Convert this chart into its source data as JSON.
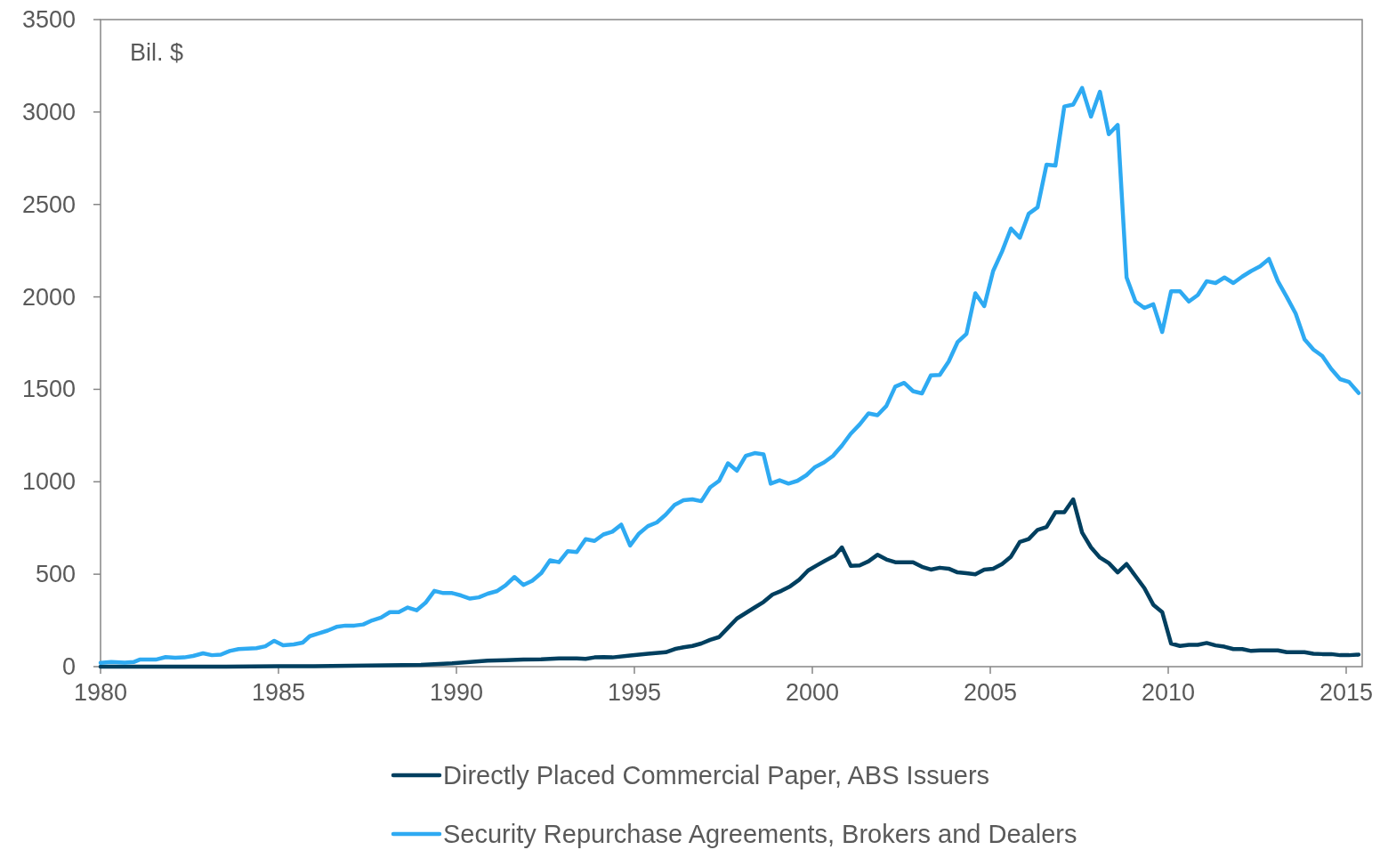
{
  "chart_data": {
    "type": "line",
    "annotations": [
      "Bil. $"
    ],
    "xlim": [
      1980,
      2015.45
    ],
    "xticks": [
      1980,
      1985,
      1990,
      1995,
      2000,
      2005,
      2010,
      2015
    ],
    "ylim": [
      0,
      3500
    ],
    "yticks": [
      0,
      500,
      1000,
      1500,
      2000,
      2500,
      3000,
      3500
    ],
    "grid": false,
    "legend": "bottom",
    "marker": "none",
    "line_style": "solid",
    "series": [
      {
        "name": "Directly Placed Commercial Paper, ABS Issuers",
        "color": "#003f5f",
        "x": [
          1980,
          1983,
          1985,
          1986,
          1987,
          1988,
          1989,
          1989.88,
          1990.38,
          1990.88,
          1991.38,
          1991.88,
          1992.38,
          1992.88,
          1993.38,
          1993.63,
          1993.88,
          1994.13,
          1994.38,
          1994.88,
          1995.38,
          1995.88,
          1996.13,
          1996.38,
          1996.63,
          1996.88,
          1997.13,
          1997.38,
          1997.63,
          1997.88,
          1998.13,
          1998.38,
          1998.63,
          1998.88,
          1999.13,
          1999.38,
          1999.63,
          1999.88,
          2000.13,
          2000.38,
          2000.63,
          2000.83,
          2001.08,
          2001.33,
          2001.58,
          2001.83,
          2002.08,
          2002.33,
          2002.58,
          2002.83,
          2003.08,
          2003.33,
          2003.58,
          2003.83,
          2004.08,
          2004.33,
          2004.58,
          2004.83,
          2005.08,
          2005.33,
          2005.58,
          2005.83,
          2006.08,
          2006.33,
          2006.58,
          2006.83,
          2007.08,
          2007.33,
          2007.58,
          2007.83,
          2008.08,
          2008.33,
          2008.58,
          2008.83,
          2009.08,
          2009.33,
          2009.58,
          2009.83,
          2010.08,
          2010.33,
          2010.58,
          2010.83,
          2011.08,
          2011.33,
          2011.58,
          2011.83,
          2012.08,
          2012.33,
          2012.58,
          2012.83,
          2013.08,
          2013.33,
          2013.58,
          2013.83,
          2014.08,
          2014.33,
          2014.58,
          2014.83,
          2015.08,
          2015.35
        ],
        "values": [
          0,
          0,
          2,
          3,
          5,
          7,
          10,
          18,
          25,
          32,
          35,
          38,
          40,
          45,
          45,
          42,
          50,
          52,
          50,
          60,
          70,
          78,
          95,
          105,
          112,
          125,
          145,
          160,
          210,
          260,
          290,
          320,
          350,
          390,
          410,
          435,
          470,
          520,
          548,
          575,
          600,
          645,
          545,
          548,
          570,
          605,
          580,
          565,
          565,
          565,
          540,
          525,
          535,
          530,
          510,
          505,
          500,
          525,
          530,
          555,
          595,
          675,
          690,
          740,
          755,
          835,
          835,
          905,
          725,
          645,
          590,
          560,
          510,
          555,
          490,
          425,
          335,
          295,
          125,
          112,
          118,
          118,
          128,
          115,
          108,
          95,
          95,
          85,
          88,
          88,
          88,
          78,
          78,
          78,
          70,
          68,
          68,
          62,
          62,
          65
        ]
      },
      {
        "name": "Security Repurchase Agreements, Brokers and Dealers",
        "color": "#2eaaf2",
        "x": [
          1980,
          1980.3,
          1980.68,
          1980.93,
          1981.1,
          1981.55,
          1981.83,
          1982.1,
          1982.35,
          1982.6,
          1982.88,
          1983.13,
          1983.38,
          1983.63,
          1983.88,
          1984.13,
          1984.38,
          1984.63,
          1984.88,
          1985.13,
          1985.43,
          1985.68,
          1985.88,
          1986.13,
          1986.38,
          1986.63,
          1986.88,
          1987.13,
          1987.38,
          1987.63,
          1987.88,
          1988.13,
          1988.38,
          1988.63,
          1988.88,
          1989.13,
          1989.38,
          1989.63,
          1989.88,
          1990.13,
          1990.38,
          1990.63,
          1990.88,
          1991.13,
          1991.38,
          1991.63,
          1991.88,
          1992.13,
          1992.38,
          1992.63,
          1992.88,
          1993.13,
          1993.38,
          1993.63,
          1993.88,
          1994.13,
          1994.38,
          1994.63,
          1994.88,
          1995.13,
          1995.38,
          1995.63,
          1995.88,
          1996.13,
          1996.38,
          1996.63,
          1996.88,
          1997.13,
          1997.38,
          1997.63,
          1997.88,
          1998.13,
          1998.38,
          1998.63,
          1998.83,
          1999.08,
          1999.33,
          1999.58,
          1999.83,
          2000.08,
          2000.33,
          2000.58,
          2000.83,
          2001.08,
          2001.33,
          2001.58,
          2001.83,
          2002.08,
          2002.33,
          2002.58,
          2002.83,
          2003.08,
          2003.33,
          2003.58,
          2003.83,
          2004.08,
          2004.33,
          2004.58,
          2004.83,
          2005.08,
          2005.33,
          2005.58,
          2005.83,
          2006.08,
          2006.33,
          2006.58,
          2006.83,
          2007.08,
          2007.33,
          2007.58,
          2007.83,
          2008.08,
          2008.33,
          2008.58,
          2008.83,
          2009.08,
          2009.33,
          2009.58,
          2009.83,
          2010.08,
          2010.33,
          2010.58,
          2010.83,
          2011.08,
          2011.33,
          2011.58,
          2011.83,
          2012.08,
          2012.33,
          2012.58,
          2012.83,
          2013.08,
          2013.33,
          2013.58,
          2013.83,
          2014.08,
          2014.33,
          2014.58,
          2014.83,
          2015.08,
          2015.35
        ],
        "values": [
          20,
          25,
          22,
          25,
          38,
          38,
          52,
          48,
          50,
          58,
          72,
          62,
          65,
          85,
          95,
          97,
          100,
          110,
          140,
          115,
          120,
          130,
          165,
          180,
          195,
          215,
          222,
          222,
          228,
          250,
          265,
          295,
          295,
          320,
          305,
          345,
          410,
          398,
          398,
          385,
          368,
          375,
          395,
          408,
          440,
          485,
          442,
          465,
          505,
          575,
          565,
          625,
          620,
          690,
          680,
          715,
          730,
          768,
          655,
          720,
          760,
          780,
          822,
          875,
          900,
          905,
          895,
          970,
          1005,
          1100,
          1060,
          1140,
          1155,
          1148,
          990,
          1008,
          990,
          1005,
          1035,
          1080,
          1105,
          1140,
          1195,
          1260,
          1310,
          1370,
          1360,
          1410,
          1515,
          1535,
          1490,
          1478,
          1575,
          1578,
          1650,
          1755,
          1800,
          2020,
          1950,
          2140,
          2245,
          2370,
          2320,
          2450,
          2485,
          2715,
          2710,
          3030,
          3040,
          3130,
          2975,
          3110,
          2880,
          2930,
          2105,
          1975,
          1940,
          1960,
          1810,
          2030,
          2030,
          1975,
          2010,
          2085,
          2075,
          2105,
          2075,
          2110,
          2140,
          2165,
          2205,
          2085,
          2000,
          1910,
          1770,
          1715,
          1680,
          1610,
          1555,
          1540,
          1480
        ]
      }
    ]
  }
}
